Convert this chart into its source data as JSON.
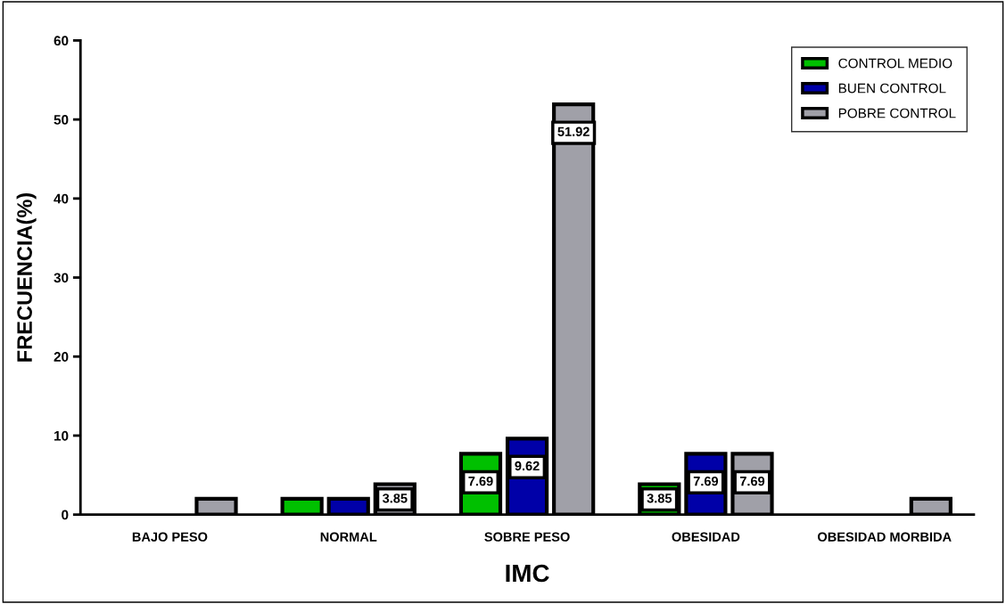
{
  "chart_data": {
    "type": "bar",
    "xlabel": "IMC",
    "ylabel": "FRECUENCIA(%)",
    "categories": [
      "BAJO PESO",
      "NORMAL",
      "SOBRE PESO",
      "OBESIDAD",
      "OBESIDAD MORBIDA"
    ],
    "series": [
      {
        "name": "CONTROL MEDIO",
        "color": "#00c000",
        "values": [
          0,
          2,
          7.69,
          3.85,
          0
        ],
        "value_labels": [
          null,
          null,
          "7.69",
          "3.85",
          null
        ]
      },
      {
        "name": "BUEN CONTROL",
        "color": "#0000a8",
        "values": [
          0,
          2,
          9.62,
          7.69,
          0
        ],
        "value_labels": [
          null,
          null,
          "9.62",
          "7.69",
          null
        ]
      },
      {
        "name": "POBRE CONTROL",
        "color": "#a0a0a8",
        "values": [
          2,
          3.85,
          51.92,
          7.69,
          2
        ],
        "value_labels": [
          null,
          "3.85",
          "51.92",
          "7.69",
          null
        ]
      }
    ],
    "ylim": [
      0,
      60
    ],
    "yticks": [
      0,
      10,
      20,
      30,
      40,
      50,
      60
    ],
    "grid": false,
    "legend": "top right"
  }
}
